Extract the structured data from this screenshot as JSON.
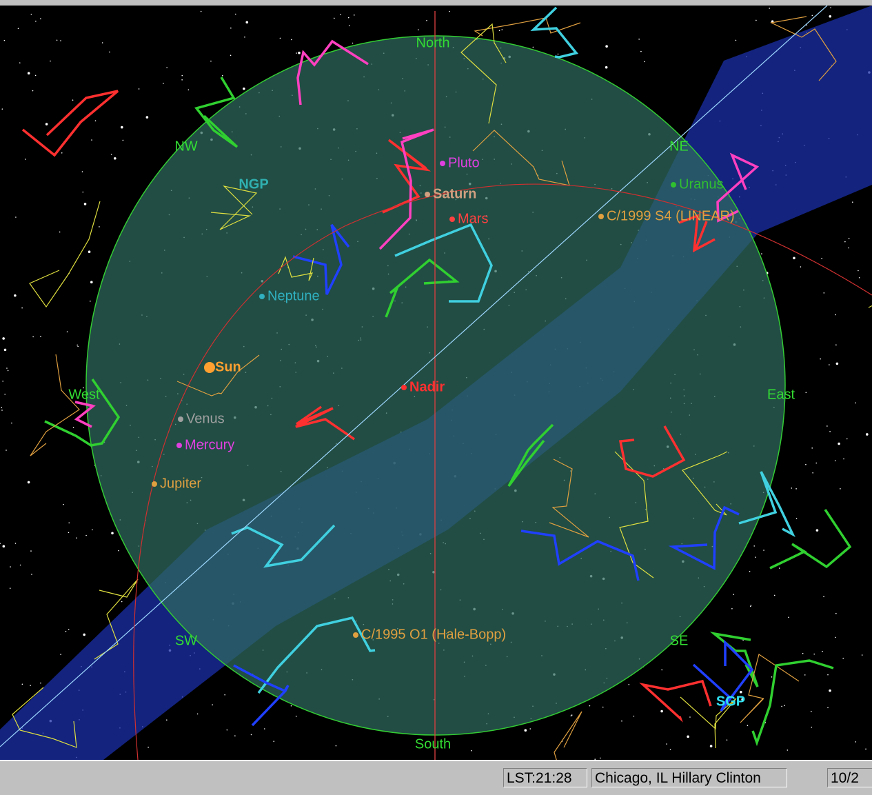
{
  "sky": {
    "compass": [
      "North",
      "NW",
      "NE",
      "West",
      "East",
      "SW",
      "SE",
      "South"
    ],
    "poles": [
      "NGP",
      "SGP"
    ],
    "objects": [
      "Pluto",
      "Saturn",
      "Mars",
      "Uranus",
      "C/1999 S4 (LINEAR)",
      "Neptune",
      "Sun",
      "Nadir",
      "Venus",
      "Mercury",
      "Jupiter",
      "C/1995 O1 (Hale-Bopp)"
    ]
  },
  "status_bar": [
    "LST:21:28",
    "Chicago, IL Hillary Clinton",
    "10/2"
  ]
}
